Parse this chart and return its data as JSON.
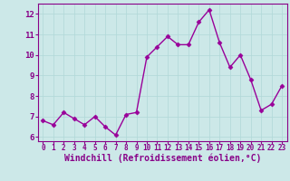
{
  "x": [
    0,
    1,
    2,
    3,
    4,
    5,
    6,
    7,
    8,
    9,
    10,
    11,
    12,
    13,
    14,
    15,
    16,
    17,
    18,
    19,
    20,
    21,
    22,
    23
  ],
  "y": [
    6.8,
    6.6,
    7.2,
    6.9,
    6.6,
    7.0,
    6.5,
    6.1,
    7.1,
    7.2,
    9.9,
    10.4,
    10.9,
    10.5,
    10.5,
    11.6,
    12.2,
    10.6,
    9.4,
    10.0,
    8.8,
    7.3,
    7.6,
    8.5
  ],
  "line_color": "#990099",
  "marker": "D",
  "markersize": 2.5,
  "linewidth": 1.0,
  "xlabel": "Windchill (Refroidissement éolien,°C)",
  "xlabel_fontsize": 7,
  "xlim": [
    -0.5,
    23.5
  ],
  "ylim": [
    5.8,
    12.5
  ],
  "yticks": [
    6,
    7,
    8,
    9,
    10,
    11,
    12
  ],
  "xticks": [
    0,
    1,
    2,
    3,
    4,
    5,
    6,
    7,
    8,
    9,
    10,
    11,
    12,
    13,
    14,
    15,
    16,
    17,
    18,
    19,
    20,
    21,
    22,
    23
  ],
  "xtick_fontsize": 5.5,
  "ytick_fontsize": 6.5,
  "bg_color": "#cce8e8",
  "grid_color": "#b0d8d8",
  "grid_linewidth": 0.5,
  "text_color": "#880088",
  "spine_color": "#880088"
}
